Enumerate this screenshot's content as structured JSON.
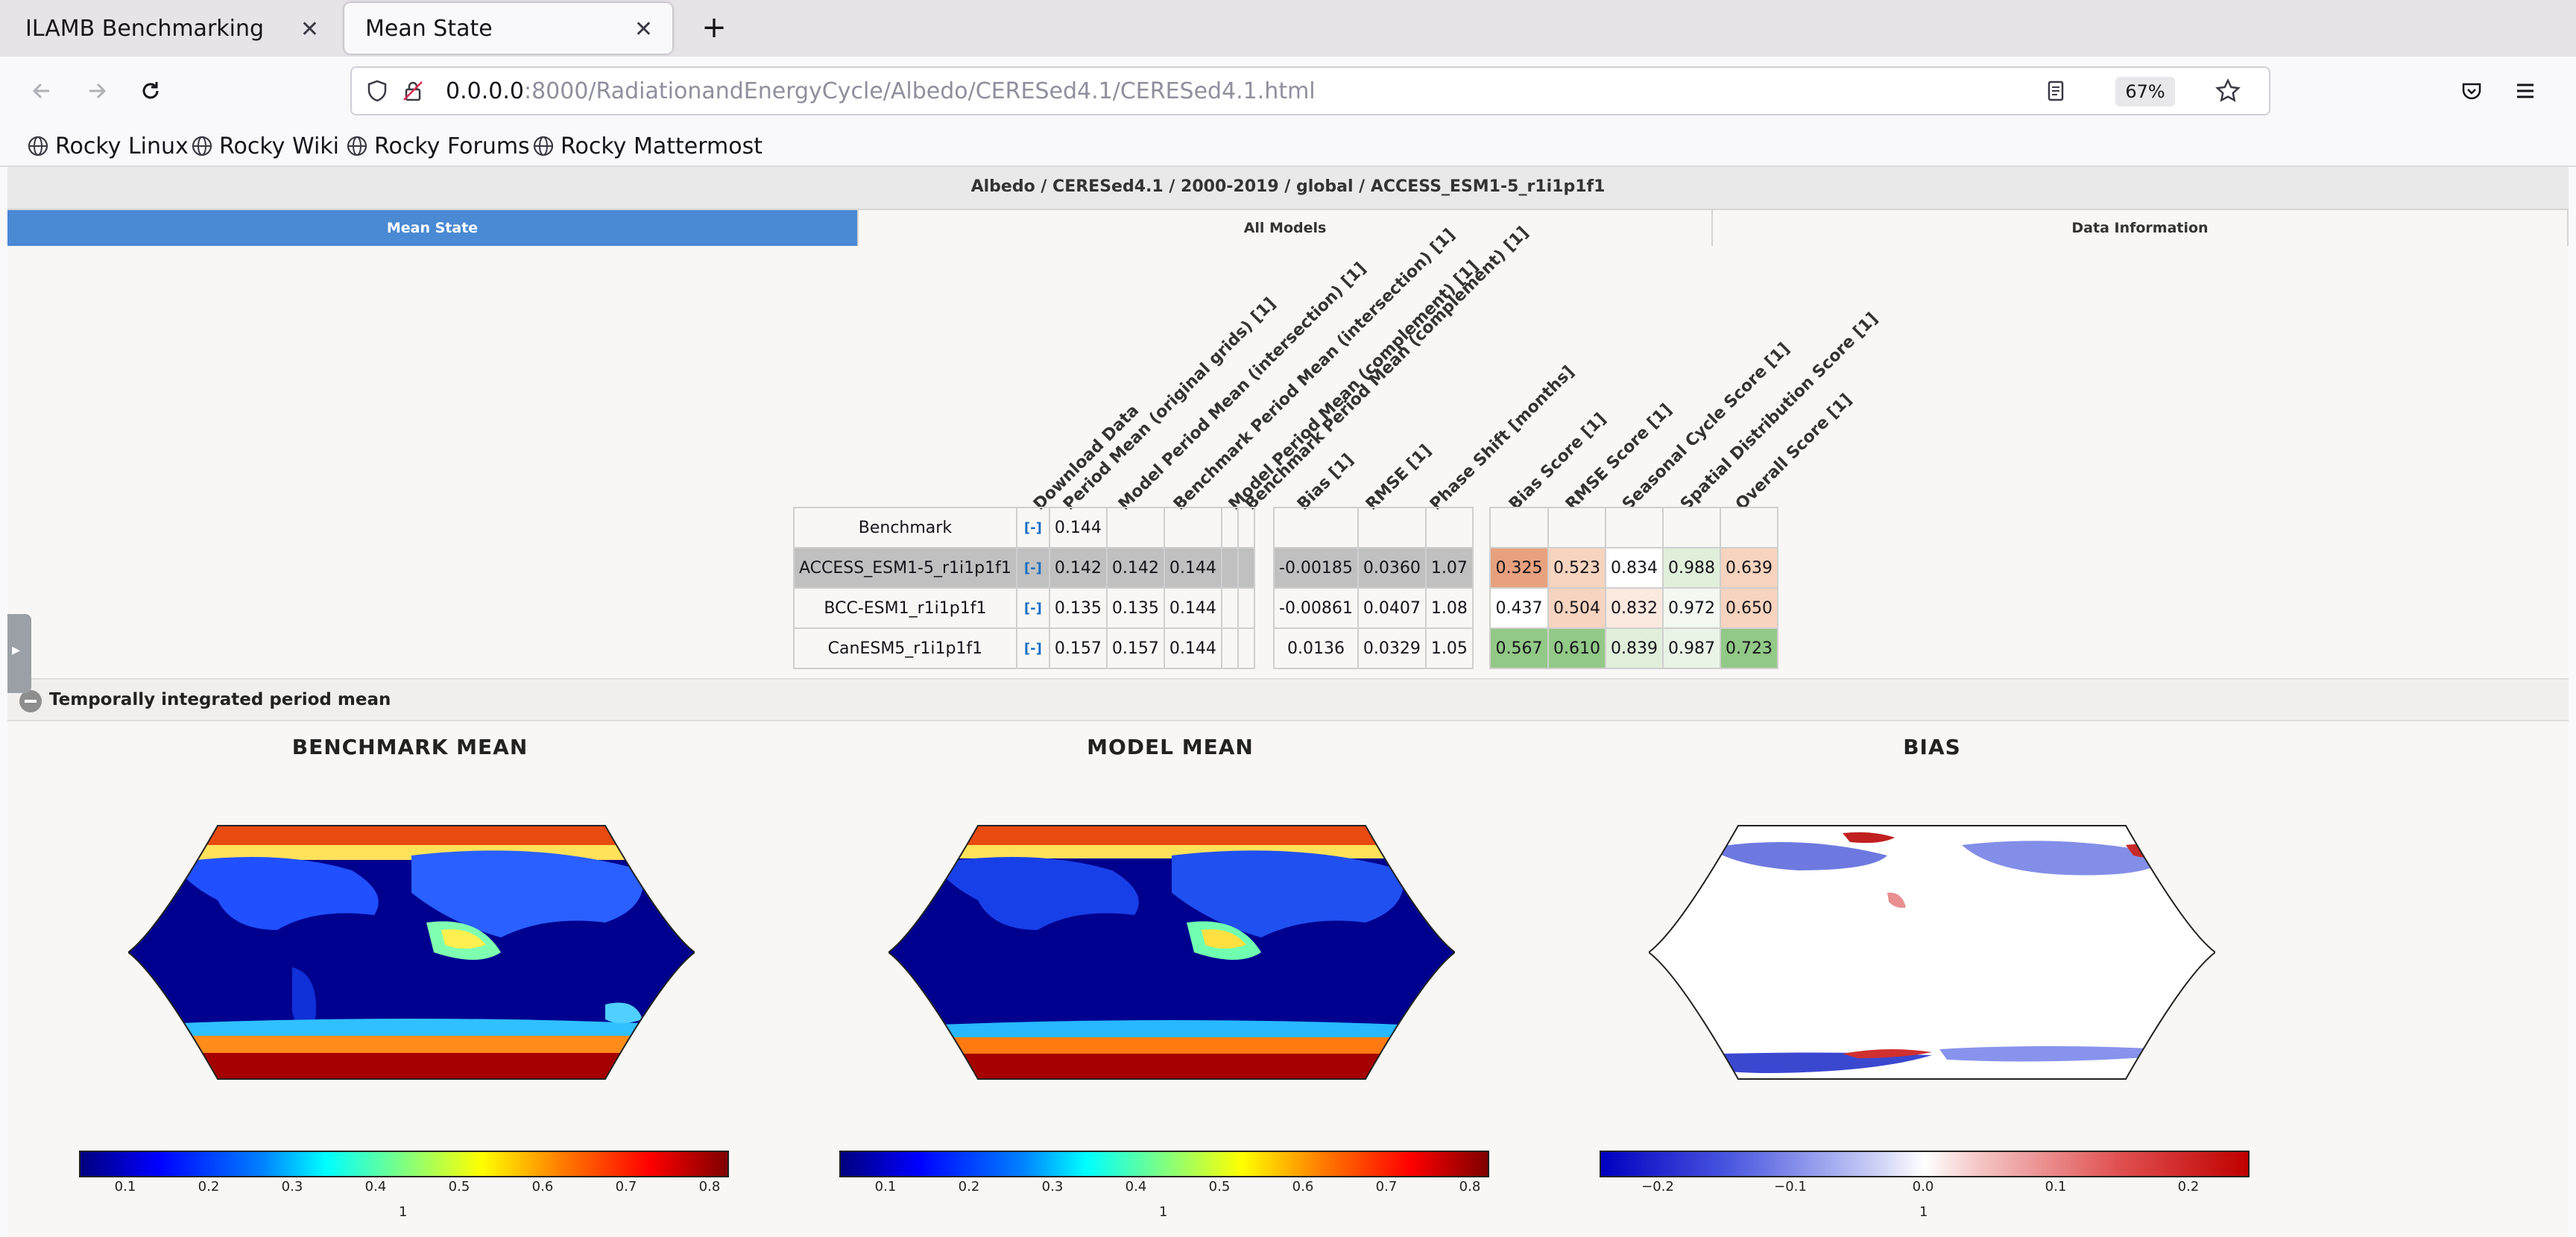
{
  "browser": {
    "tabs": [
      {
        "title": "ILAMB Benchmarking",
        "active": false
      },
      {
        "title": "Mean State",
        "active": true
      }
    ],
    "url": {
      "host": "0.0.0.0",
      "rest": ":8000/RadiationandEnergyCycle/Albedo/CERESed4.1/CERESed4.1.html"
    },
    "zoom": "67%",
    "bookmarks": [
      "Rocky Linux",
      "Rocky Wiki",
      "Rocky Forums",
      "Rocky Mattermost"
    ]
  },
  "page": {
    "breadcrumb": "Albedo / CERESed4.1 / 2000-2019 / global / ACCESS_ESM1-5_r1i1p1f1",
    "tabs": [
      "Mean State",
      "All Models",
      "Data Information"
    ],
    "columns": [
      "Download Data",
      "Period Mean (original grids) [1]",
      "Model Period Mean (intersection) [1]",
      "Benchmark Period Mean (intersection) [1]",
      "Model Period Mean (complement) [1]",
      "Benchmark Period Mean (complement) [1]",
      "Bias [1]",
      "RMSE [1]",
      "Phase Shift [months]",
      "Bias Score [1]",
      "RMSE Score [1]",
      "Seasonal Cycle Score [1]",
      "Spatial Distribution Score [1]",
      "Overall Score [1]"
    ],
    "rows": [
      {
        "name": "Benchmark",
        "dl": "[-]",
        "vals": [
          "0.144",
          "",
          "",
          "",
          "",
          "",
          "",
          ""
        ],
        "scores": [
          "",
          "",
          "",
          "",
          ""
        ]
      },
      {
        "name": "ACCESS_ESM1-5_r1i1p1f1",
        "dl": "[-]",
        "vals": [
          "0.142",
          "0.142",
          "0.144",
          "",
          "",
          "-0.00185",
          "0.0360",
          "1.07"
        ],
        "scores": [
          "0.325",
          "0.523",
          "0.834",
          "0.988",
          "0.639"
        ]
      },
      {
        "name": "BCC-ESM1_r1i1p1f1",
        "dl": "[-]",
        "vals": [
          "0.135",
          "0.135",
          "0.144",
          "",
          "",
          "-0.00861",
          "0.0407",
          "1.08"
        ],
        "scores": [
          "0.437",
          "0.504",
          "0.832",
          "0.972",
          "0.650"
        ]
      },
      {
        "name": "CanESM5_r1i1p1f1",
        "dl": "[-]",
        "vals": [
          "0.157",
          "0.157",
          "0.144",
          "",
          "",
          "0.0136",
          "0.0329",
          "1.05"
        ],
        "scores": [
          "0.567",
          "0.610",
          "0.839",
          "0.987",
          "0.723"
        ]
      }
    ],
    "score_colors": [
      [
        "#f8f7f5",
        "#f8f7f5",
        "#f8f7f5",
        "#f8f7f5",
        "#f8f7f5"
      ],
      [
        "#e8a17e",
        "#f7d4bf",
        "#ffffff",
        "#e0efda",
        "#f7d4bf"
      ],
      [
        "#ffffff",
        "#f7d4bf",
        "#fbe9df",
        "#f3f8f0",
        "#f7d4bf"
      ],
      [
        "#92c987",
        "#92c987",
        "#e0efda",
        "#eaf4e6",
        "#92c987"
      ]
    ],
    "section_label": "Temporally integrated period mean",
    "maps": [
      {
        "title": "BENCHMARK MEAN",
        "ticks": [
          "0.1",
          "0.2",
          "0.3",
          "0.4",
          "0.5",
          "0.6",
          "0.7",
          "0.8"
        ],
        "unit": "1"
      },
      {
        "title": "MODEL MEAN",
        "ticks": [
          "0.1",
          "0.2",
          "0.3",
          "0.4",
          "0.5",
          "0.6",
          "0.7",
          "0.8"
        ],
        "unit": "1"
      },
      {
        "title": "BIAS",
        "ticks": [
          "−0.2",
          "−0.1",
          "0.0",
          "0.1",
          "0.2"
        ],
        "unit": "1"
      }
    ]
  }
}
